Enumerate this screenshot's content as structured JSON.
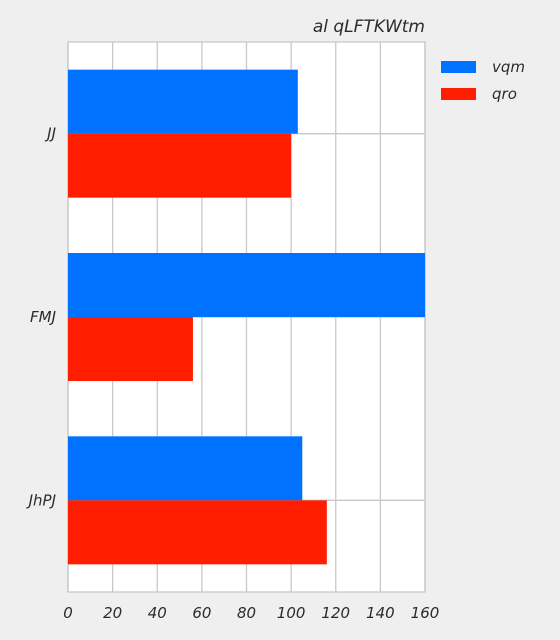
{
  "chart_data": {
    "type": "bar",
    "orientation": "horizontal",
    "title": "al qLFTKWtm",
    "xlabel": "",
    "ylabel": "",
    "categories": [
      "JJ",
      "FMJ",
      "JhPJ"
    ],
    "series": [
      {
        "name": "vqm",
        "color": "#0072ff",
        "values": [
          103,
          160,
          105
        ]
      },
      {
        "name": "qro",
        "color": "#ff1e00",
        "values": [
          100,
          56,
          116
        ]
      }
    ],
    "xlim": [
      0,
      160
    ],
    "xticks": [
      "0",
      "20",
      "40",
      "60",
      "80",
      "100",
      "120",
      "140",
      "160"
    ],
    "grid": true,
    "legend_position": "outside-right"
  }
}
